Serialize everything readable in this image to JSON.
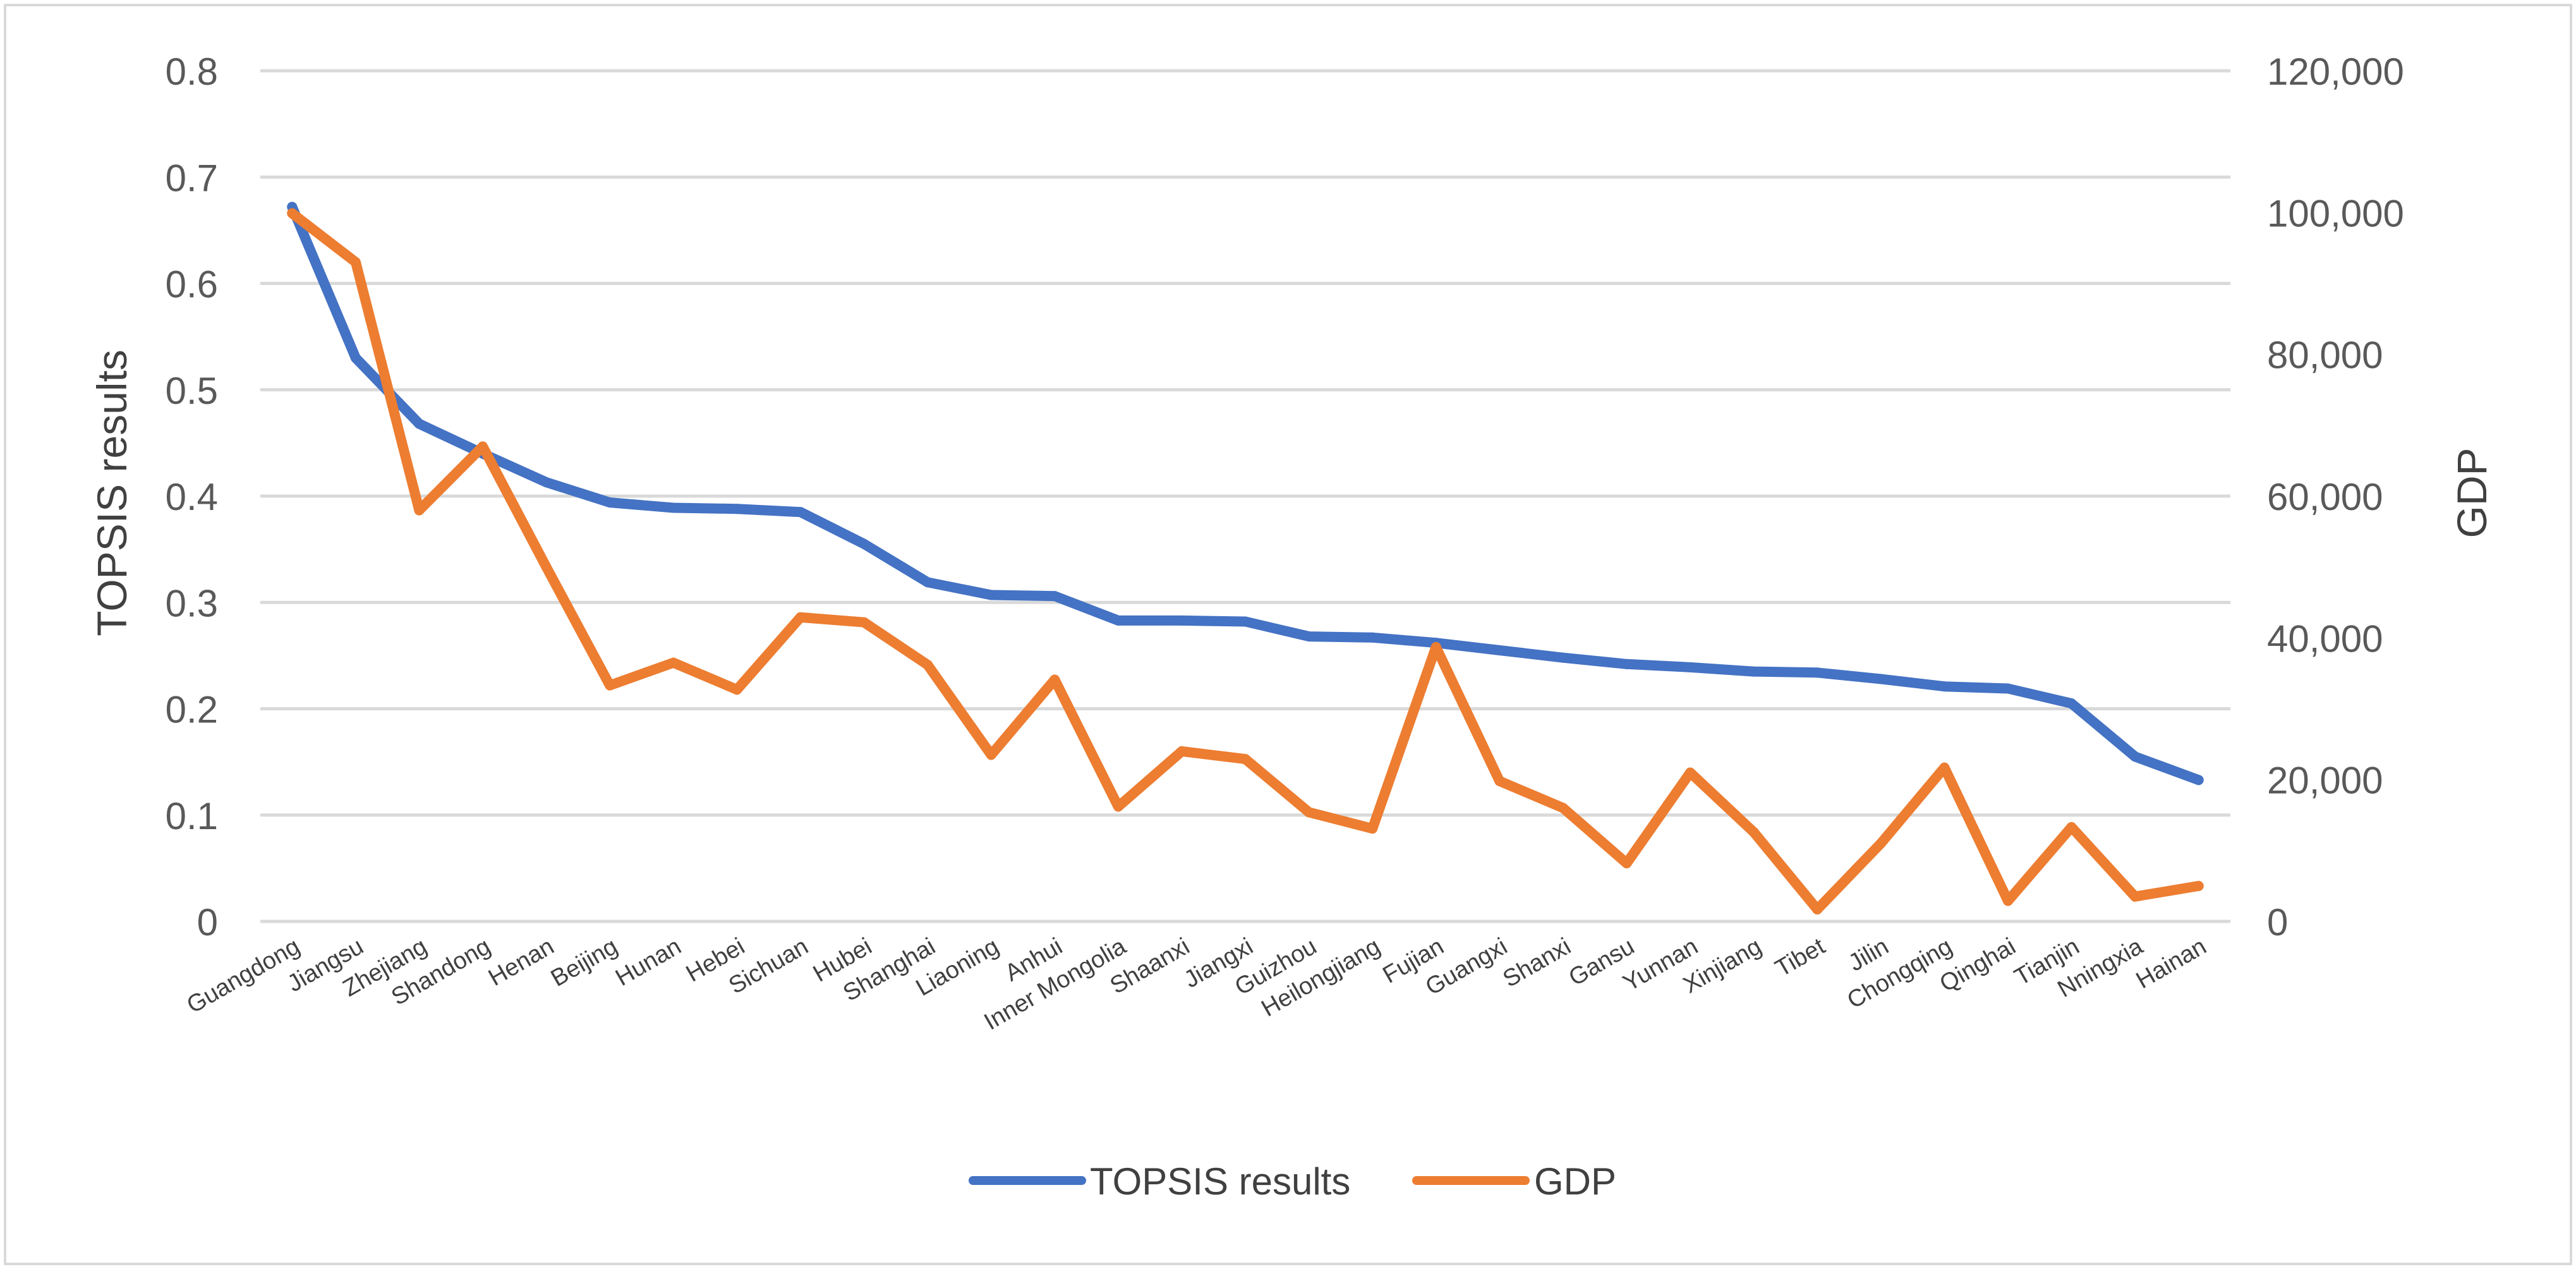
{
  "chart_data": {
    "type": "line",
    "title": "",
    "categories": [
      "Guangdong",
      "Jiangsu",
      "Zhejiang",
      "Shandong",
      "Henan",
      "Beijing",
      "Hunan",
      "Hebei",
      "Sichuan",
      "Hubei",
      "Shanghai",
      "Liaoning",
      "Anhui",
      "Inner Mongolia",
      "Shaanxi",
      "Jiangxi",
      "Guizhou",
      "Heilongjiang",
      "Fujian",
      "Guangxi",
      "Shanxi",
      "Gansu",
      "Yunnan",
      "Xinjiang",
      "Tibet",
      "Jilin",
      "Chongqing",
      "Qinghai",
      "Tianjin",
      "Nningxia",
      "Hainan"
    ],
    "series": [
      {
        "name": "TOPSIS results",
        "axis": "left",
        "color": "#4472C4",
        "values": [
          0.672,
          0.53,
          0.468,
          0.44,
          0.413,
          0.394,
          0.389,
          0.388,
          0.385,
          0.355,
          0.319,
          0.307,
          0.306,
          0.283,
          0.283,
          0.282,
          0.268,
          0.267,
          0.262,
          0.255,
          0.248,
          0.242,
          0.239,
          0.235,
          0.234,
          0.228,
          0.221,
          0.219,
          0.205,
          0.155,
          0.133
        ]
      },
      {
        "name": "GDP",
        "axis": "right",
        "color": "#ED7D31",
        "values": [
          99900,
          93000,
          58000,
          67000,
          50000,
          33300,
          36500,
          32700,
          42900,
          42200,
          36200,
          23500,
          34100,
          16200,
          24000,
          22900,
          15400,
          13100,
          38700,
          19800,
          16000,
          8200,
          21000,
          12600,
          1700,
          11000,
          21700,
          2900,
          13300,
          3500,
          5000
        ]
      }
    ],
    "y_left": {
      "label": "TOPSIS results",
      "range": [
        0,
        0.8
      ],
      "ticks": [
        0,
        0.1,
        0.2,
        0.3,
        0.4,
        0.5,
        0.6,
        0.7,
        0.8
      ],
      "tick_labels": [
        "0",
        "0.1",
        "0.2",
        "0.3",
        "0.4",
        "0.5",
        "0.6",
        "0.7",
        "0.8"
      ]
    },
    "y_right": {
      "label": "GDP",
      "range": [
        0,
        120000
      ],
      "ticks": [
        0,
        20000,
        40000,
        60000,
        80000,
        100000,
        120000
      ],
      "tick_labels": [
        "0",
        "20,000",
        "40,000",
        "60,000",
        "80,000",
        "100,000",
        "120,000"
      ]
    },
    "grid": true,
    "legend": {
      "position": "bottom",
      "entries": [
        "TOPSIS results",
        "GDP"
      ]
    },
    "colors": {
      "gridline": "#D9D9D9",
      "frame": "#D9D9D9"
    }
  }
}
